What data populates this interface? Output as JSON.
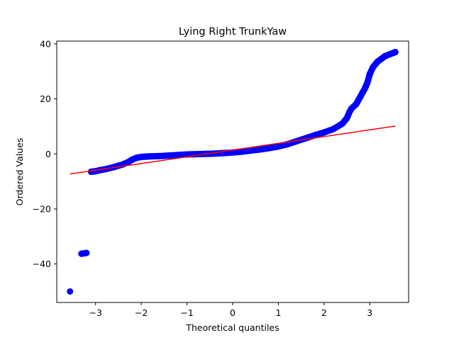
{
  "chart_data": {
    "type": "scatter",
    "title": "Lying Right TrunkYaw",
    "xlabel": "Theoretical quantiles",
    "ylabel": "Ordered Values",
    "xlim": [
      -3.85,
      3.85
    ],
    "ylim": [
      -54,
      41
    ],
    "x_ticks": [
      -3,
      -2,
      -1,
      0,
      1,
      2,
      3
    ],
    "x_tick_labels": [
      "−3",
      "−2",
      "−1",
      "0",
      "1",
      "2",
      "3"
    ],
    "y_ticks": [
      -40,
      -20,
      0,
      20,
      40
    ],
    "y_tick_labels": [
      "−40",
      "−20",
      "0",
      "20",
      "40"
    ],
    "grid": false,
    "series": [
      {
        "kind": "points",
        "color": "#0000ff",
        "points": [
          [
            -3.56,
            -50
          ],
          [
            -3.31,
            -36.3
          ],
          [
            -3.2,
            -36
          ],
          [
            -3.1,
            -6.5
          ],
          [
            -3.0,
            -6.3
          ],
          [
            -2.9,
            -5.9
          ],
          [
            -2.8,
            -5.6
          ],
          [
            -2.7,
            -5.2
          ],
          [
            -2.6,
            -4.8
          ],
          [
            -2.5,
            -4.3
          ],
          [
            -2.4,
            -3.8
          ],
          [
            -2.3,
            -3.1
          ],
          [
            -2.2,
            -2.1
          ],
          [
            -2.1,
            -1.4
          ],
          [
            -2.0,
            -1.1
          ],
          [
            -1.9,
            -1.0
          ],
          [
            -1.8,
            -0.9
          ],
          [
            -1.6,
            -0.8
          ],
          [
            -1.4,
            -0.6
          ],
          [
            -1.2,
            -0.4
          ],
          [
            -1.0,
            -0.2
          ],
          [
            -0.8,
            -0.1
          ],
          [
            -0.6,
            0.0
          ],
          [
            -0.4,
            0.1
          ],
          [
            -0.2,
            0.3
          ],
          [
            0.0,
            0.5
          ],
          [
            0.2,
            0.8
          ],
          [
            0.4,
            1.2
          ],
          [
            0.6,
            1.6
          ],
          [
            0.8,
            2.1
          ],
          [
            1.0,
            2.7
          ],
          [
            1.2,
            3.5
          ],
          [
            1.4,
            4.6
          ],
          [
            1.6,
            5.7
          ],
          [
            1.8,
            6.8
          ],
          [
            2.0,
            7.8
          ],
          [
            2.2,
            9.0
          ],
          [
            2.4,
            11.0
          ],
          [
            2.5,
            13.0
          ],
          [
            2.55,
            15.0
          ],
          [
            2.6,
            16.5
          ],
          [
            2.7,
            18.0
          ],
          [
            2.75,
            19.5
          ],
          [
            2.8,
            21.0
          ],
          [
            2.85,
            22.5
          ],
          [
            2.9,
            24.0
          ],
          [
            2.95,
            26.0
          ],
          [
            3.0,
            29.0
          ],
          [
            3.07,
            31.5
          ],
          [
            3.17,
            33.5
          ],
          [
            3.33,
            35.5
          ],
          [
            3.56,
            37.0
          ]
        ]
      },
      {
        "kind": "fit-line",
        "color": "#ff0000",
        "x": [
          -3.56,
          3.56
        ],
        "y": [
          -7.3,
          10.1
        ]
      }
    ]
  }
}
